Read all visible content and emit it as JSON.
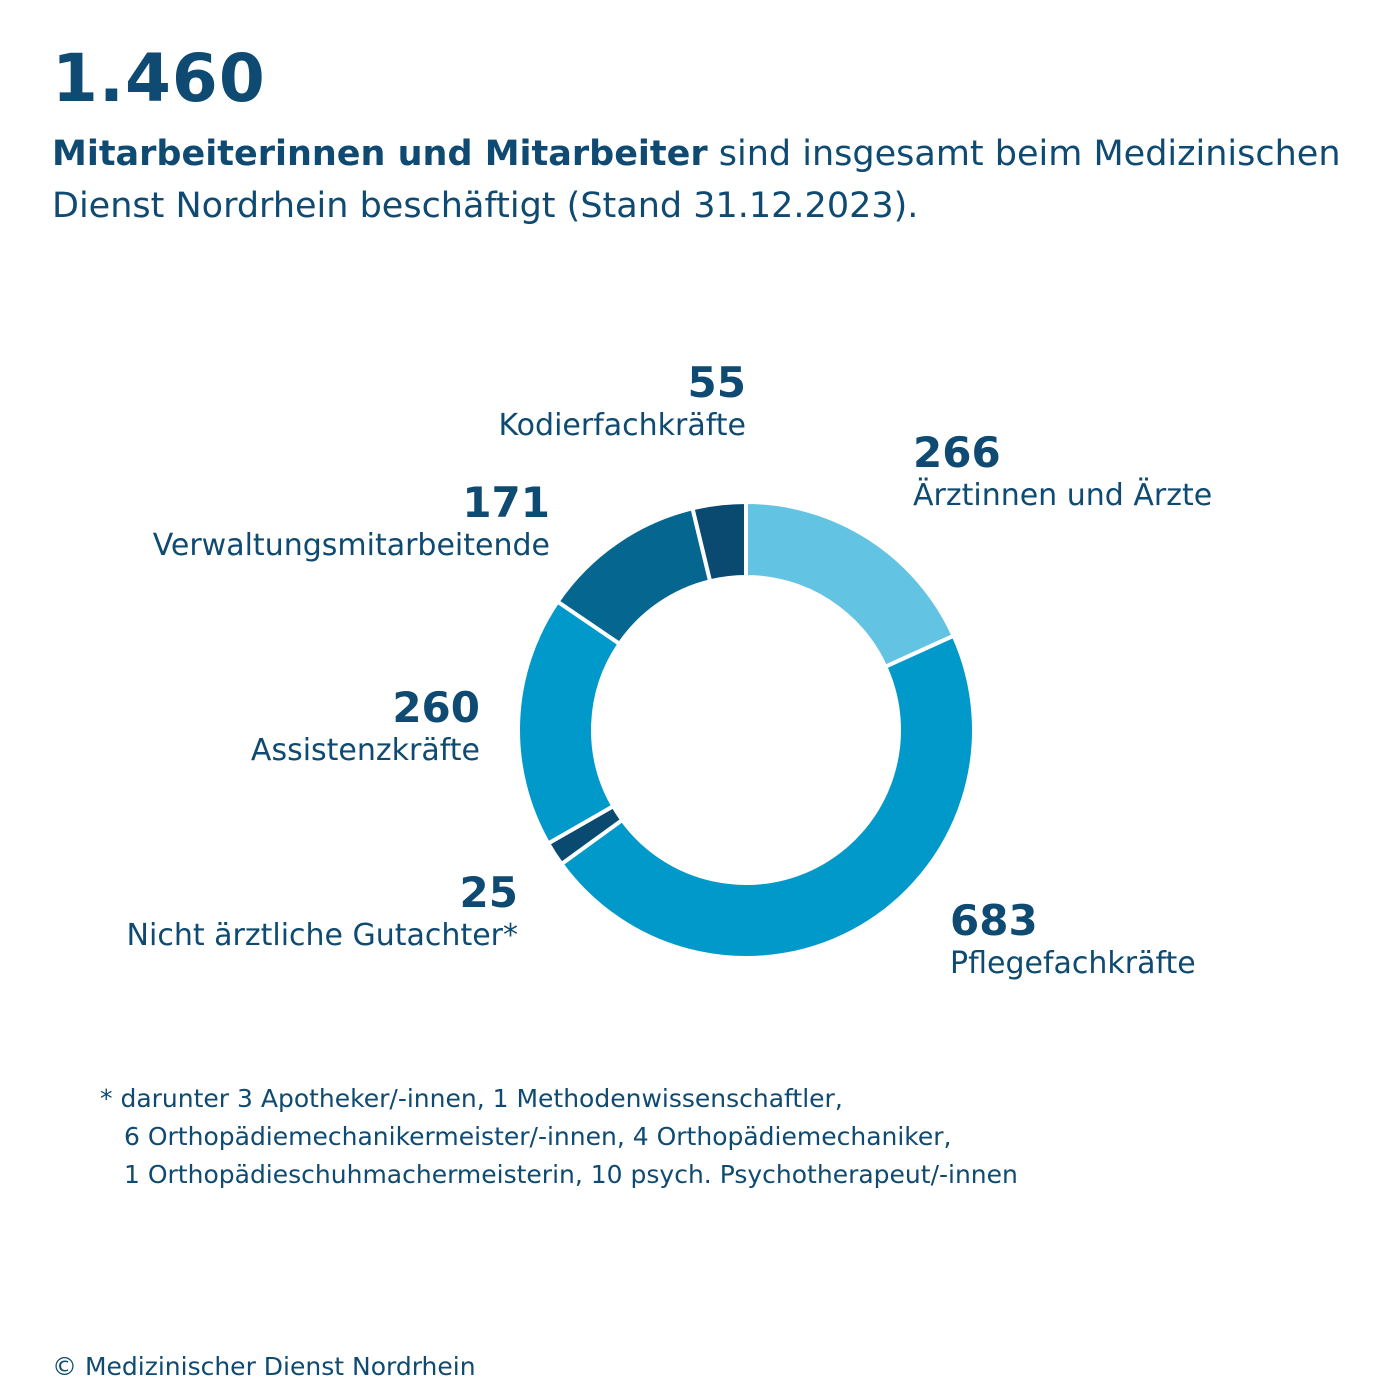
{
  "header": {
    "total": "1.460",
    "headline_bold": "Mitarbeiterinnen und Mitarbeiter",
    "headline_rest": " sind insgesamt beim Medizinischen Dienst Nordrhein beschäftigt (Stand 31.12.2023)."
  },
  "chart_data": {
    "type": "pie",
    "donut": true,
    "start_angle_deg": 0,
    "direction": "clockwise",
    "categories": [
      "Ärztinnen und Ärzte",
      "Pflegefachkräfte",
      "Nicht ärztliche Gutachter*",
      "Assistenzkräfte",
      "Verwaltungsmitarbeitende",
      "Kodierfachkräfte"
    ],
    "values": [
      266,
      683,
      25,
      260,
      171,
      55
    ],
    "value_labels": [
      "266",
      "683",
      "25",
      "260",
      "171",
      "55"
    ],
    "colors": [
      "#63c3e2",
      "#0199c9",
      "#0a4a70",
      "#0199c9",
      "#05668f",
      "#0a4a70"
    ]
  },
  "footnote": {
    "lines": [
      "* darunter 3 Apotheker/-innen, 1 Methodenwissenschaftler,",
      "6 Orthopädiemechanikermeister/-innen, 4 Orthopädiemechaniker,",
      "1 Orthopädieschuhmachermeisterin, 10 psych. Psychotherapeut/-innen"
    ]
  },
  "copyright": "© Medizinischer Dienst Nordrhein"
}
